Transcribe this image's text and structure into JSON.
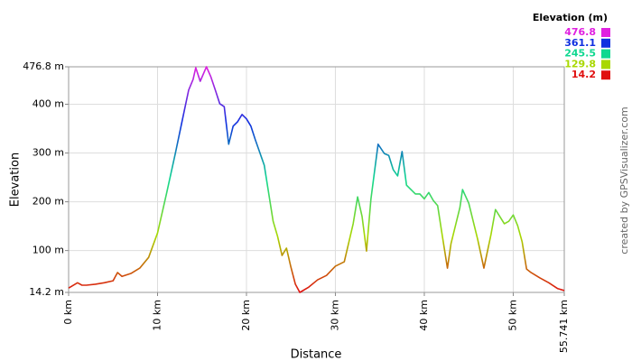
{
  "chart_data": {
    "type": "line",
    "x_label": "Distance",
    "y_label": "Elevation",
    "credit": "created by GPSVisualizer.com",
    "x": [
      0,
      1,
      1.5,
      2,
      3,
      4,
      5,
      5.5,
      6,
      7,
      8,
      9,
      10,
      11,
      12,
      13,
      13.5,
      14,
      14.3,
      14.8,
      15.5,
      16,
      16.5,
      17,
      17.5,
      18,
      18.5,
      19,
      19.5,
      20,
      20.5,
      21,
      22,
      23,
      23.5,
      24,
      24.5,
      25,
      25.5,
      26,
      27,
      28,
      29,
      30,
      31,
      32,
      32.5,
      33,
      33.5,
      34,
      34.8,
      35.5,
      36,
      36.5,
      37,
      37.5,
      38,
      38.5,
      39,
      39.5,
      40,
      40.5,
      41,
      41.5,
      42,
      42.6,
      43,
      44,
      44.3,
      45,
      46,
      46.7,
      47.5,
      48,
      49,
      49.5,
      50,
      50.5,
      51,
      51.5,
      52,
      53,
      54,
      55,
      55.741
    ],
    "values": [
      23,
      34,
      29,
      29,
      31,
      34,
      38,
      55,
      47,
      53,
      64,
      86,
      136,
      216,
      299,
      386,
      429,
      451,
      475,
      447,
      476.8,
      456,
      429,
      401,
      395,
      318,
      355,
      364,
      379,
      370,
      355,
      327,
      275,
      160,
      129,
      90,
      105,
      66,
      31,
      14.2,
      25,
      40,
      49,
      68,
      77,
      155,
      210,
      170,
      99,
      206,
      318,
      299,
      295,
      266,
      253,
      303,
      234,
      225,
      216,
      216,
      206,
      219,
      203,
      192,
      133,
      64,
      114,
      188,
      225,
      197,
      123,
      64,
      133,
      184,
      155,
      160,
      173,
      151,
      118,
      62,
      55,
      44,
      34,
      22,
      18
    ],
    "xlim": [
      0,
      55.741
    ],
    "ylim": [
      14.2,
      476.8
    ],
    "xticks": [
      {
        "value": 0,
        "label": "0 km"
      },
      {
        "value": 10,
        "label": "10 km"
      },
      {
        "value": 20,
        "label": "20 km"
      },
      {
        "value": 30,
        "label": "30 km"
      },
      {
        "value": 40,
        "label": "40 km"
      },
      {
        "value": 50,
        "label": "50 km"
      },
      {
        "value": 55.741,
        "label": "55.741 km"
      }
    ],
    "yticks": [
      {
        "value": 14.2,
        "label": "14.2 m"
      },
      {
        "value": 100,
        "label": "100 m"
      },
      {
        "value": 200,
        "label": "200 m"
      },
      {
        "value": 300,
        "label": "300 m"
      },
      {
        "value": 400,
        "label": "400 m"
      },
      {
        "value": 476.8,
        "label": "476.8 m"
      }
    ],
    "grid": true,
    "legend": {
      "title": "Elevation (m)",
      "items": [
        {
          "value": 476.8,
          "color": "#e020e0"
        },
        {
          "value": 361.1,
          "color": "#1030e0"
        },
        {
          "value": 245.5,
          "color": "#10d890"
        },
        {
          "value": 129.8,
          "color": "#a8d800"
        },
        {
          "value": 14.2,
          "color": "#e01010"
        }
      ]
    }
  }
}
